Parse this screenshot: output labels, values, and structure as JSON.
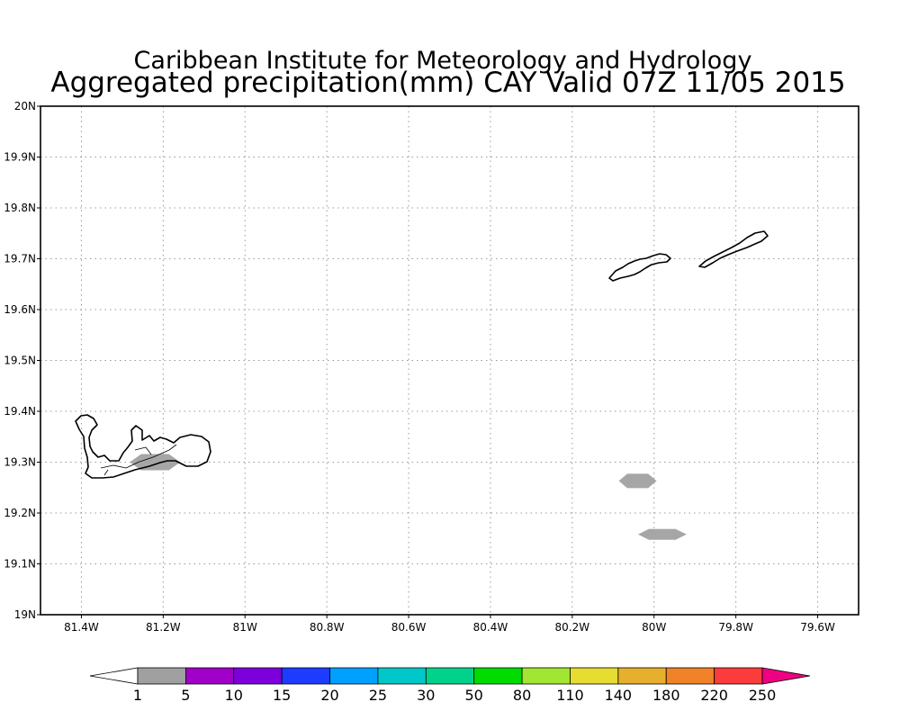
{
  "header": {
    "title": "Caribbean Institute for Meteorology and Hydrology",
    "subtitle": "Aggregated precipitation(mm) CAY Valid 07Z 11/05 2015"
  },
  "map": {
    "lon_range": [
      -81.5,
      -79.5
    ],
    "lat_range": [
      19.0,
      20.0
    ],
    "grid": "dotted",
    "lat_ticks": [
      {
        "value": 20.0,
        "label": "20N"
      },
      {
        "value": 19.9,
        "label": "19.9N"
      },
      {
        "value": 19.8,
        "label": "19.8N"
      },
      {
        "value": 19.7,
        "label": "19.7N"
      },
      {
        "value": 19.6,
        "label": "19.6N"
      },
      {
        "value": 19.5,
        "label": "19.5N"
      },
      {
        "value": 19.4,
        "label": "19.4N"
      },
      {
        "value": 19.3,
        "label": "19.3N"
      },
      {
        "value": 19.2,
        "label": "19.2N"
      },
      {
        "value": 19.1,
        "label": "19.1N"
      },
      {
        "value": 19.0,
        "label": "19N"
      }
    ],
    "lon_ticks": [
      {
        "value": -81.4,
        "label": "81.4W"
      },
      {
        "value": -81.2,
        "label": "81.2W"
      },
      {
        "value": -81.0,
        "label": "81W"
      },
      {
        "value": -80.8,
        "label": "80.8W"
      },
      {
        "value": -80.6,
        "label": "80.6W"
      },
      {
        "value": -80.4,
        "label": "80.4W"
      },
      {
        "value": -80.2,
        "label": "80.2W"
      },
      {
        "value": -80.0,
        "label": "80W"
      },
      {
        "value": -79.8,
        "label": "79.8W"
      },
      {
        "value": -79.6,
        "label": "79.6W"
      }
    ],
    "precip_areas": [
      {
        "center_lon": -81.22,
        "center_lat": 19.3,
        "category": "1-5"
      },
      {
        "center_lon": -80.04,
        "center_lat": 19.263,
        "category": "1-5"
      },
      {
        "center_lon": -79.98,
        "center_lat": 19.158,
        "category": "1-5"
      }
    ],
    "precip_color": "#a6a6a6"
  },
  "colorbar": {
    "labels": [
      "1",
      "5",
      "10",
      "15",
      "20",
      "25",
      "30",
      "50",
      "80",
      "110",
      "140",
      "180",
      "220",
      "250"
    ],
    "colors": [
      "#a0a0a0",
      "#a000c8",
      "#7d00dc",
      "#1e3cff",
      "#00a0ff",
      "#00c8c8",
      "#00d28c",
      "#00dc00",
      "#a0e632",
      "#e6dc32",
      "#e6af2d",
      "#f08228",
      "#fa3c3c",
      "#f00082"
    ],
    "low_color": "#ffffff"
  }
}
